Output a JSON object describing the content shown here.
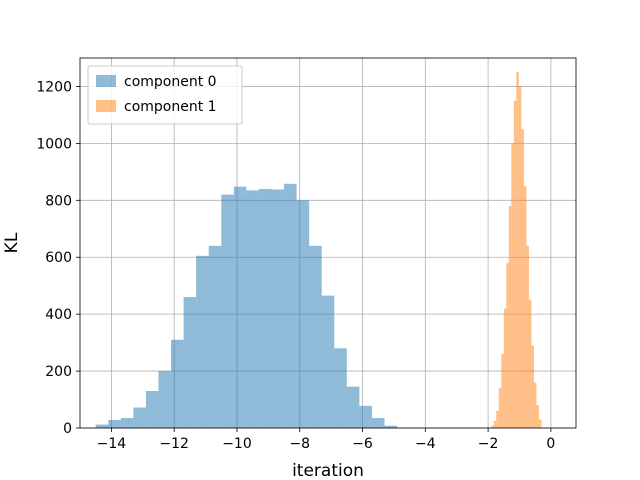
{
  "chart_data": {
    "type": "bar",
    "subtype": "histogram",
    "title": "",
    "xlabel": "iteration",
    "ylabel": "KL",
    "xlim": [
      -15.0,
      0.8
    ],
    "ylim": [
      0,
      1300
    ],
    "xticks": [
      -14,
      -12,
      -10,
      -8,
      -6,
      -4,
      -2,
      0
    ],
    "yticks": [
      0,
      200,
      400,
      600,
      800,
      1000,
      1200
    ],
    "xtick_labels": [
      "−14",
      "−12",
      "−10",
      "−8",
      "−6",
      "−4",
      "−2",
      "0"
    ],
    "ytick_labels": [
      "0",
      "200",
      "400",
      "600",
      "800",
      "1000",
      "1200"
    ],
    "grid": true,
    "legend_position": "top-left",
    "series": [
      {
        "name": "component 0",
        "color": "#1f77b4",
        "opacity": 0.5,
        "bin_edges": [
          -14.5,
          -14.1,
          -13.7,
          -13.3,
          -12.9,
          -12.5,
          -12.1,
          -11.7,
          -11.3,
          -10.9,
          -10.5,
          -10.1,
          -9.7,
          -9.3,
          -8.9,
          -8.5,
          -8.1,
          -7.7,
          -7.3,
          -6.9,
          -6.5,
          -6.1,
          -5.7,
          -5.3,
          -4.9
        ],
        "values": [
          12,
          28,
          35,
          72,
          130,
          200,
          310,
          460,
          605,
          640,
          820,
          848,
          835,
          840,
          838,
          858,
          800,
          640,
          465,
          280,
          145,
          78,
          35,
          8
        ]
      },
      {
        "name": "component 1",
        "color": "#ff7f0e",
        "opacity": 0.5,
        "bin_edges": [
          -1.9,
          -1.82,
          -1.74,
          -1.66,
          -1.58,
          -1.5,
          -1.42,
          -1.34,
          -1.26,
          -1.18,
          -1.1,
          -1.02,
          -0.94,
          -0.86,
          -0.78,
          -0.7,
          -0.62,
          -0.54,
          -0.46,
          -0.38,
          -0.3
        ],
        "values": [
          8,
          25,
          60,
          140,
          260,
          420,
          580,
          780,
          1000,
          1150,
          1250,
          1200,
          1050,
          850,
          640,
          450,
          290,
          160,
          80,
          30
        ]
      }
    ]
  }
}
